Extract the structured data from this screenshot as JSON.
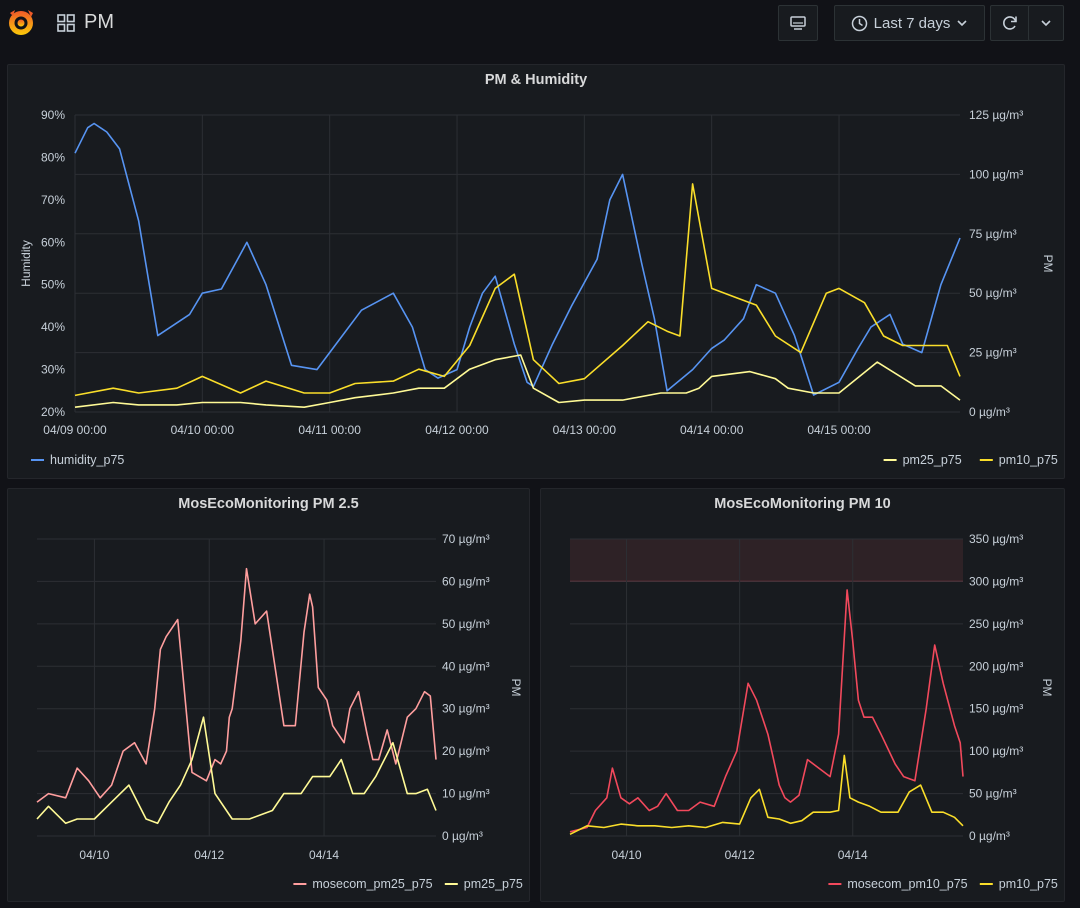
{
  "header": {
    "dashboard_title": "PM",
    "time_range_label": "Last 7 days",
    "icons": {
      "logo": "grafana-logo",
      "dashboards": "dashboards-grid-icon",
      "tv": "tv-mode-icon",
      "clock": "clock-icon",
      "refresh": "refresh-icon",
      "chevron": "chevron-down-icon"
    }
  },
  "panels": [
    {
      "title": "PM & Humidity",
      "left_axis_label": "Humidity",
      "right_axis_label": "PM",
      "left_ticks": [
        "90%",
        "80%",
        "70%",
        "60%",
        "50%",
        "40%",
        "30%",
        "20%"
      ],
      "right_ticks": [
        "125 µg/m³",
        "100 µg/m³",
        "75 µg/m³",
        "50 µg/m³",
        "25 µg/m³",
        "0 µg/m³"
      ],
      "x_ticks": [
        "04/09 00:00",
        "04/10 00:00",
        "04/11 00:00",
        "04/12 00:00",
        "04/13 00:00",
        "04/14 00:00",
        "04/15 00:00"
      ],
      "legend_left": [
        {
          "name": "humidity_p75",
          "color": "#5794f2"
        }
      ],
      "legend_right": [
        {
          "name": "pm25_p75",
          "color": "#fffa96"
        },
        {
          "name": "pm10_p75",
          "color": "#fade2a"
        }
      ]
    },
    {
      "title": "MosEcoMonitoring PM 2.5",
      "right_axis_label": "PM",
      "right_ticks": [
        "70 µg/m³",
        "60 µg/m³",
        "50 µg/m³",
        "40 µg/m³",
        "30 µg/m³",
        "20 µg/m³",
        "10 µg/m³",
        "0 µg/m³"
      ],
      "x_ticks": [
        "04/10",
        "04/12",
        "04/14"
      ],
      "legend": [
        {
          "name": "mosecom_pm25_p75",
          "color": "#ff9e9e"
        },
        {
          "name": "pm25_p75",
          "color": "#fffa96"
        }
      ]
    },
    {
      "title": "MosEcoMonitoring PM 10",
      "right_axis_label": "PM",
      "right_ticks": [
        "350 µg/m³",
        "300 µg/m³",
        "250 µg/m³",
        "200 µg/m³",
        "150 µg/m³",
        "100 µg/m³",
        "50 µg/m³",
        "0 µg/m³"
      ],
      "x_ticks": [
        "04/10",
        "04/12",
        "04/14"
      ],
      "legend": [
        {
          "name": "mosecom_pm10_p75",
          "color": "#f2495c"
        },
        {
          "name": "pm10_p75",
          "color": "#fade2a"
        }
      ],
      "threshold": {
        "value": 300,
        "color": "#f2495c"
      }
    }
  ],
  "chart_data": [
    {
      "type": "line",
      "title": "PM & Humidity",
      "ylabel": "Humidity",
      "y2label": "PM",
      "x_unit": "days since 04/09 00:00",
      "xlim": [
        0,
        6.95
      ],
      "ylim": [
        20,
        90
      ],
      "y2lim": [
        0,
        125
      ],
      "grid": true,
      "legend_position": "bottom",
      "series": [
        {
          "name": "humidity_p75",
          "axis": "left",
          "color": "#5794f2",
          "x": [
            0,
            0.1,
            0.15,
            0.25,
            0.35,
            0.5,
            0.65,
            0.9,
            1.0,
            1.15,
            1.35,
            1.5,
            1.7,
            1.9,
            2.05,
            2.25,
            2.5,
            2.65,
            2.75,
            2.85,
            3.0,
            3.1,
            3.2,
            3.3,
            3.45,
            3.55,
            3.6,
            3.75,
            3.9,
            4.1,
            4.2,
            4.3,
            4.45,
            4.55,
            4.65,
            4.85,
            5.0,
            5.1,
            5.25,
            5.35,
            5.5,
            5.65,
            5.8,
            6.0,
            6.15,
            6.25,
            6.4,
            6.5,
            6.65,
            6.8,
            6.95
          ],
          "y": [
            81,
            87,
            88,
            86,
            82,
            65,
            38,
            43,
            48,
            49,
            60,
            50,
            31,
            30,
            36,
            44,
            48,
            40,
            30,
            28,
            30,
            40,
            48,
            52,
            36,
            27,
            26,
            36,
            45,
            56,
            70,
            76,
            55,
            42,
            25,
            30,
            35,
            37,
            42,
            50,
            48,
            38,
            24,
            27,
            35,
            40,
            43,
            36,
            34,
            50,
            61
          ]
        },
        {
          "name": "pm25_p75",
          "axis": "right",
          "color": "#fffa96",
          "x": [
            0,
            0.3,
            0.5,
            0.8,
            1.0,
            1.3,
            1.5,
            1.8,
            2.0,
            2.2,
            2.5,
            2.7,
            2.9,
            3.1,
            3.3,
            3.5,
            3.6,
            3.8,
            4.0,
            4.3,
            4.6,
            4.8,
            4.9,
            5.0,
            5.3,
            5.5,
            5.6,
            5.8,
            6.0,
            6.3,
            6.6,
            6.8,
            6.95
          ],
          "y": [
            2,
            4,
            3,
            3,
            4,
            4,
            3,
            2,
            4,
            6,
            8,
            10,
            10,
            18,
            22,
            24,
            10,
            4,
            5,
            5,
            8,
            8,
            10,
            15,
            17,
            14,
            10,
            8,
            8,
            21,
            11,
            11,
            5
          ]
        },
        {
          "name": "pm10_p75",
          "axis": "right",
          "color": "#fade2a",
          "x": [
            0,
            0.3,
            0.5,
            0.8,
            1.0,
            1.3,
            1.5,
            1.8,
            2.0,
            2.2,
            2.5,
            2.7,
            2.9,
            3.1,
            3.3,
            3.45,
            3.6,
            3.8,
            4.0,
            4.3,
            4.5,
            4.65,
            4.75,
            4.85,
            5.0,
            5.2,
            5.35,
            5.5,
            5.7,
            5.9,
            6.0,
            6.2,
            6.35,
            6.5,
            6.7,
            6.85,
            6.95
          ],
          "y": [
            7,
            10,
            8,
            10,
            15,
            8,
            13,
            8,
            8,
            12,
            13,
            18,
            15,
            28,
            52,
            58,
            22,
            12,
            14,
            28,
            38,
            34,
            32,
            96,
            52,
            48,
            45,
            32,
            25,
            50,
            52,
            46,
            32,
            28,
            28,
            28,
            15
          ]
        }
      ]
    },
    {
      "type": "line",
      "title": "MosEcoMonitoring PM 2.5",
      "y2label": "PM",
      "x_unit": "days since 04/09 00:00",
      "xlim": [
        0,
        6.95
      ],
      "y2lim": [
        0,
        70
      ],
      "grid": true,
      "legend_position": "bottom-right",
      "series": [
        {
          "name": "mosecom_pm25_p75",
          "color": "#ff9e9e",
          "x": [
            0,
            0.2,
            0.5,
            0.7,
            0.9,
            1.1,
            1.3,
            1.5,
            1.7,
            1.9,
            2.05,
            2.15,
            2.25,
            2.45,
            2.7,
            2.95,
            3.1,
            3.2,
            3.3,
            3.35,
            3.4,
            3.55,
            3.65,
            3.8,
            4.0,
            4.3,
            4.5,
            4.65,
            4.75,
            4.8,
            4.9,
            5.05,
            5.15,
            5.35,
            5.45,
            5.6,
            5.75,
            5.85,
            5.95,
            6.1,
            6.25,
            6.45,
            6.6,
            6.75,
            6.85,
            6.95
          ],
          "y": [
            8,
            10,
            9,
            16,
            13,
            9,
            12,
            20,
            22,
            17,
            30,
            44,
            47,
            51,
            15,
            13,
            18,
            17,
            20,
            28,
            30,
            46,
            63,
            50,
            53,
            26,
            26,
            48,
            57,
            54,
            35,
            32,
            26,
            22,
            30,
            34,
            24,
            18,
            18,
            25,
            17,
            28,
            30,
            34,
            33,
            18
          ]
        },
        {
          "name": "pm25_p75",
          "color": "#fffa96",
          "x": [
            0,
            0.2,
            0.5,
            0.7,
            1.0,
            1.3,
            1.6,
            1.9,
            2.1,
            2.3,
            2.5,
            2.7,
            2.9,
            3.1,
            3.4,
            3.7,
            3.9,
            4.1,
            4.3,
            4.6,
            4.8,
            5.1,
            5.3,
            5.5,
            5.7,
            5.9,
            6.2,
            6.45,
            6.6,
            6.8,
            6.95
          ],
          "y": [
            4,
            7,
            3,
            4,
            4,
            8,
            12,
            4,
            3,
            8,
            12,
            18,
            28,
            10,
            4,
            4,
            5,
            6,
            10,
            10,
            14,
            14,
            18,
            10,
            10,
            14,
            22,
            10,
            10,
            11,
            6
          ]
        }
      ]
    },
    {
      "type": "line",
      "title": "MosEcoMonitoring PM 10",
      "y2label": "PM",
      "x_unit": "days since 04/09 00:00",
      "xlim": [
        0,
        6.95
      ],
      "y2lim": [
        0,
        350
      ],
      "grid": true,
      "legend_position": "bottom-right",
      "threshold_band": [
        300,
        350
      ],
      "series": [
        {
          "name": "mosecom_pm10_p75",
          "color": "#f2495c",
          "x": [
            0,
            0.3,
            0.45,
            0.65,
            0.75,
            0.9,
            1.05,
            1.2,
            1.4,
            1.55,
            1.7,
            1.9,
            2.1,
            2.3,
            2.55,
            2.75,
            2.95,
            3.15,
            3.3,
            3.5,
            3.6,
            3.7,
            3.8,
            3.9,
            4.05,
            4.2,
            4.4,
            4.6,
            4.75,
            4.9,
            5.0,
            5.1,
            5.2,
            5.35,
            5.5,
            5.75,
            5.9,
            6.1,
            6.3,
            6.45,
            6.6,
            6.8,
            6.9,
            6.95
          ],
          "y": [
            5,
            10,
            30,
            45,
            80,
            45,
            38,
            45,
            30,
            35,
            50,
            30,
            30,
            40,
            35,
            70,
            100,
            180,
            160,
            120,
            90,
            60,
            45,
            40,
            48,
            90,
            80,
            70,
            120,
            290,
            230,
            160,
            140,
            140,
            120,
            85,
            70,
            65,
            150,
            225,
            180,
            130,
            110,
            70
          ]
        },
        {
          "name": "pm10_p75",
          "color": "#fade2a",
          "x": [
            0,
            0.3,
            0.6,
            0.9,
            1.2,
            1.5,
            1.8,
            2.1,
            2.4,
            2.7,
            3.0,
            3.2,
            3.35,
            3.5,
            3.7,
            3.9,
            4.1,
            4.3,
            4.6,
            4.75,
            4.85,
            4.95,
            5.1,
            5.3,
            5.5,
            5.8,
            6.0,
            6.2,
            6.4,
            6.6,
            6.8,
            6.95
          ],
          "y": [
            2,
            12,
            10,
            14,
            12,
            12,
            10,
            12,
            10,
            16,
            14,
            45,
            55,
            22,
            20,
            15,
            18,
            28,
            28,
            30,
            95,
            45,
            40,
            35,
            28,
            28,
            52,
            60,
            28,
            28,
            22,
            12
          ]
        }
      ]
    }
  ]
}
